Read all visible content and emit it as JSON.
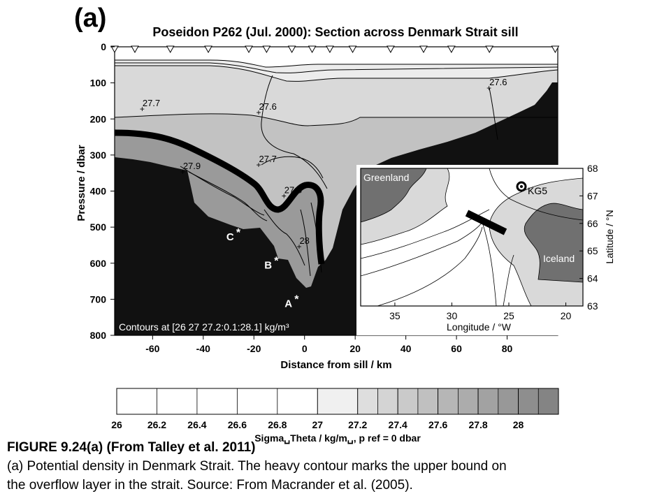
{
  "chart_data": [
    {
      "type": "contour",
      "panel_label": "(a)",
      "title": "Poseidon P262 (Jul. 2000): Section across Denmark Strait sill",
      "xlabel": "Distance from sill / km",
      "ylabel": "Pressure / dbar",
      "xlim": [
        -75,
        100
      ],
      "ylim": [
        800,
        0
      ],
      "xticks": [
        "-60",
        "-40",
        "-20",
        "0",
        "20",
        "40",
        "60",
        "80"
      ],
      "yticks": [
        "0",
        "100",
        "200",
        "300",
        "400",
        "500",
        "600",
        "700",
        "800"
      ],
      "station_x": [
        -75,
        -67,
        -53,
        -38,
        -22,
        -15,
        -5,
        3,
        10,
        19,
        34,
        47,
        58,
        73,
        99
      ],
      "contour_labels": [
        {
          "text": "27.6",
          "x": 73,
          "y": 112
        },
        {
          "text": "27.7",
          "x": -64,
          "y": 170
        },
        {
          "text": "27.6",
          "x": -18,
          "y": 180
        },
        {
          "text": "27.7",
          "x": -18,
          "y": 325
        },
        {
          "text": "27.9",
          "x": -48,
          "y": 345
        },
        {
          "text": "27.8",
          "x": -8,
          "y": 412
        },
        {
          "text": "28",
          "x": -2,
          "y": 552
        }
      ],
      "station_markers": [
        {
          "text": "C",
          "x": -27,
          "y": 525
        },
        {
          "text": "B",
          "x": -12,
          "y": 603
        },
        {
          "text": "A",
          "x": -4,
          "y": 710
        }
      ],
      "annotation": "Contours at [26 27 27.2:0.1:28.1] kg/m³"
    },
    {
      "type": "map",
      "xlabel": "Longitude / °W",
      "ylabel": "Latitude / °N",
      "xticks": [
        "35",
        "30",
        "25",
        "20"
      ],
      "yticks": [
        "68",
        "67",
        "66",
        "65",
        "64",
        "63"
      ],
      "place_labels": [
        "Greenland",
        "KG5",
        "Iceland"
      ]
    },
    {
      "type": "colorbar",
      "label": "Sigma␣Theta / kg/m␣, p ref = 0 dbar",
      "tick_labels": [
        "26",
        "26.2",
        "26.4",
        "26.6",
        "26.8",
        "27",
        "27.2",
        "27.4",
        "27.6",
        "27.8",
        "28"
      ],
      "range": [
        26,
        28.2
      ],
      "levels": [
        26,
        27,
        27.2,
        27.3,
        27.4,
        27.5,
        27.6,
        27.7,
        27.8,
        27.9,
        28,
        28.1,
        28.2
      ]
    }
  ],
  "caption": {
    "title": "FIGURE 9.24(a) (From Talley et al. 2011)",
    "line1": "(a) Potential density in Denmark Strait. The heavy contour marks the upper bound on",
    "line2": "the overflow layer in the strait. Source: From Macrander et al. (2005)."
  },
  "colors": {
    "bottom": "#111111",
    "overflow_fill": "#9a9a9a",
    "layer_277": "#c2c2c2",
    "layer_276": "#d9d9d9",
    "layer_272": "#ececec",
    "map_deep": "#ffffff",
    "map_shelf": "#d9d9d9",
    "land": "#707070"
  }
}
